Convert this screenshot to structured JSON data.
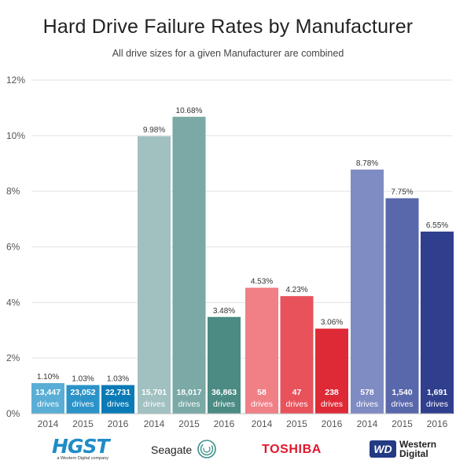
{
  "header": {
    "title": "Hard Drive Failure Rates by Manufacturer",
    "subtitle": "All drive sizes for a given Manufacturer are combined"
  },
  "chart_data": {
    "type": "bar",
    "title": "Hard Drive Failure Rates by Manufacturer",
    "subtitle": "All drive sizes for a given Manufacturer are combined",
    "ylim": [
      0,
      12
    ],
    "yticks": [
      "0%",
      "2%",
      "4%",
      "6%",
      "8%",
      "10%",
      "12%"
    ],
    "grid": true,
    "groups": [
      {
        "manufacturer": "HGST",
        "bars": [
          {
            "year": "2014",
            "value": 1.1,
            "label": "1.10%",
            "drives": "13,447",
            "unit": "drives",
            "color": "#5aaed6"
          },
          {
            "year": "2015",
            "value": 1.03,
            "label": "1.03%",
            "drives": "23,052",
            "unit": "drives",
            "color": "#2b93c8"
          },
          {
            "year": "2016",
            "value": 1.03,
            "label": "1.03%",
            "drives": "22,731",
            "unit": "drives",
            "color": "#0a7bb6"
          }
        ]
      },
      {
        "manufacturer": "Seagate",
        "bars": [
          {
            "year": "2014",
            "value": 9.98,
            "label": "9.98%",
            "drives": "15,701",
            "unit": "drives",
            "color": "#a0c1c0"
          },
          {
            "year": "2015",
            "value": 10.68,
            "label": "10.68%",
            "drives": "18,017",
            "unit": "drives",
            "color": "#7aa9a6"
          },
          {
            "year": "2016",
            "value": 3.48,
            "label": "3.48%",
            "drives": "36,863",
            "unit": "drives",
            "color": "#4b8b84"
          }
        ]
      },
      {
        "manufacturer": "Toshiba",
        "bars": [
          {
            "year": "2014",
            "value": 4.53,
            "label": "4.53%",
            "drives": "58",
            "unit": "drives",
            "color": "#f07f86"
          },
          {
            "year": "2015",
            "value": 4.23,
            "label": "4.23%",
            "drives": "47",
            "unit": "drives",
            "color": "#e8525b"
          },
          {
            "year": "2016",
            "value": 3.06,
            "label": "3.06%",
            "drives": "238",
            "unit": "drives",
            "color": "#de2a36"
          }
        ]
      },
      {
        "manufacturer": "Western Digital",
        "bars": [
          {
            "year": "2014",
            "value": 8.78,
            "label": "8.78%",
            "drives": "578",
            "unit": "drives",
            "color": "#7f8bc3"
          },
          {
            "year": "2015",
            "value": 7.75,
            "label": "7.75%",
            "drives": "1,540",
            "unit": "drives",
            "color": "#5967ab"
          },
          {
            "year": "2016",
            "value": 6.55,
            "label": "6.55%",
            "drives": "1,691",
            "unit": "drives",
            "color": "#2f3f8e"
          }
        ]
      }
    ]
  },
  "logos": {
    "hgst": {
      "name": "HGST",
      "sub": "a Western Digital company",
      "color": "#1f8cc8"
    },
    "seagate": {
      "name": "Seagate"
    },
    "toshiba": {
      "name": "TOSHIBA",
      "color": "#e0182d"
    },
    "wd": {
      "mark": "WD",
      "line1": "Western",
      "line2": "Digital",
      "color": "#233a84"
    }
  }
}
